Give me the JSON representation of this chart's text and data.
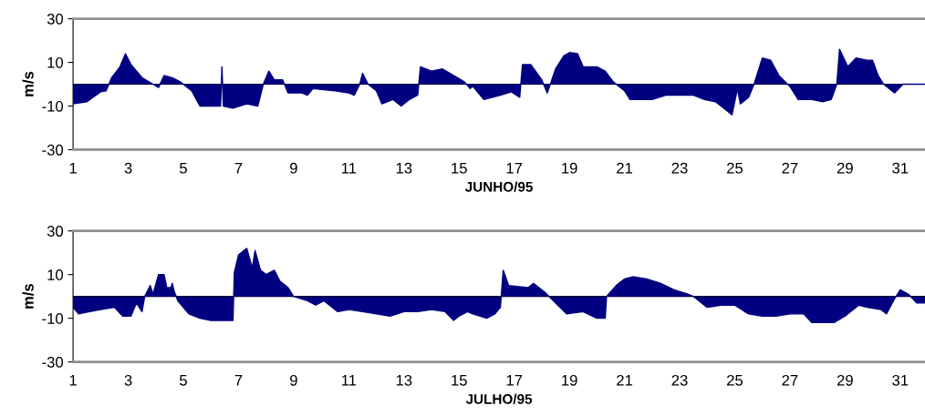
{
  "chart_data": [
    {
      "type": "area",
      "xlabel": "JUNHO/95",
      "ylabel": "m/s",
      "xlim": [
        1,
        31.9
      ],
      "ylim": [
        -30,
        30
      ],
      "xticks": [
        1,
        3,
        5,
        7,
        9,
        11,
        13,
        15,
        17,
        19,
        21,
        23,
        25,
        27,
        29,
        31
      ],
      "yticks": [
        -30,
        -10,
        10,
        30
      ],
      "series": [
        {
          "color": "#000080",
          "x": [
            1,
            1.5,
            2,
            2.2,
            2.3,
            2.4,
            2.7,
            2.9,
            3.1,
            3.5,
            3.9,
            4.1,
            4.3,
            4.6,
            4.9,
            5.3,
            5.6,
            6.0,
            6.35,
            6.4,
            6.45,
            6.8,
            7.3,
            7.7,
            7.9,
            8.1,
            8.3,
            8.6,
            8.8,
            9.3,
            9.5,
            9.7,
            10.5,
            11.0,
            11.2,
            11.4,
            11.5,
            11.7,
            12.0,
            12.2,
            12.6,
            12.9,
            13.2,
            13.5,
            13.6,
            14.0,
            14.4,
            14.8,
            15.2,
            15.4,
            15.5,
            15.9,
            16.5,
            16.9,
            17.2,
            17.3,
            17.6,
            18.0,
            18.2,
            18.5,
            18.8,
            19.0,
            19.3,
            19.5,
            20.0,
            20.3,
            20.6,
            21.0,
            21.2,
            21.6,
            22.0,
            22.5,
            23.0,
            23.5,
            23.9,
            24.3,
            24.7,
            24.9,
            25.1,
            25.2,
            25.5,
            25.7,
            26.0,
            26.3,
            26.6,
            27.0,
            27.3,
            27.8,
            28.2,
            28.5,
            28.7,
            28.8,
            29.1,
            29.4,
            29.8,
            30.0,
            30.2,
            30.4,
            30.8,
            31.1,
            31.9
          ],
          "values": [
            -9,
            -8,
            -3.5,
            -3,
            0,
            3,
            8,
            14,
            9,
            3,
            0,
            -1.5,
            4,
            3,
            1,
            -3,
            -10,
            -10,
            -10,
            8,
            -10,
            -11,
            -9,
            -10,
            0,
            6,
            2,
            2,
            -4,
            -4,
            -5,
            -2,
            -3,
            -4,
            -5,
            0,
            5,
            0,
            -3,
            -9,
            -7,
            -10,
            -7,
            -5,
            8,
            6,
            7,
            4,
            1,
            -2,
            -1,
            -7,
            -5,
            -3.5,
            -6,
            9,
            9,
            2,
            -4,
            7,
            13,
            14.5,
            14,
            8,
            8,
            6,
            1,
            -3,
            -7,
            -7,
            -7,
            -5,
            -5,
            -5,
            -7,
            -8,
            -12,
            -14,
            -2,
            -9,
            -6,
            0,
            12,
            11,
            4,
            -1,
            -7,
            -7,
            -8,
            -7,
            0,
            16,
            8,
            12,
            11,
            11,
            4,
            0,
            -4,
            0,
            0
          ]
        }
      ]
    },
    {
      "type": "area",
      "xlabel": "JULHO/95",
      "ylabel": "m/s",
      "xlim": [
        1,
        31.9
      ],
      "ylim": [
        -30,
        30
      ],
      "xticks": [
        1,
        3,
        5,
        7,
        9,
        11,
        13,
        15,
        17,
        19,
        21,
        23,
        25,
        27,
        29,
        31
      ],
      "yticks": [
        -30,
        -10,
        10,
        30
      ],
      "series": [
        {
          "color": "#000080",
          "x": [
            1.0,
            1.2,
            1.6,
            2.0,
            2.5,
            2.8,
            3.1,
            3.3,
            3.5,
            3.6,
            3.8,
            3.9,
            4.1,
            4.3,
            4.4,
            4.55,
            4.6,
            4.65,
            4.8,
            5.2,
            5.6,
            6.0,
            6.5,
            6.8,
            6.85,
            7.0,
            7.3,
            7.5,
            7.6,
            7.8,
            8.0,
            8.3,
            8.5,
            8.8,
            9.0,
            9.5,
            9.8,
            10.1,
            10.3,
            10.6,
            11.0,
            11.5,
            12.0,
            12.5,
            13.0,
            13.5,
            14.0,
            14.5,
            14.8,
            15.0,
            15.3,
            15.5,
            16.0,
            16.3,
            16.5,
            16.6,
            16.8,
            17.5,
            17.7,
            18.1,
            18.5,
            18.9,
            19.5,
            20.0,
            20.3,
            20.35,
            20.7,
            21.0,
            21.3,
            21.8,
            22.3,
            22.8,
            23.3,
            23.5,
            24.0,
            24.5,
            25.0,
            25.5,
            26.0,
            26.5,
            27.0,
            27.5,
            27.8,
            28.2,
            28.6,
            29.0,
            29.5,
            29.8,
            30.3,
            30.5,
            30.8,
            31.0,
            31.3,
            31.6,
            31.9
          ],
          "values": [
            -5,
            -8,
            -7,
            -6,
            -5,
            -9,
            -9,
            -3,
            -7,
            0,
            5,
            1,
            10,
            10,
            4,
            4,
            6,
            3,
            -2,
            -8,
            -10,
            -11,
            -11,
            -11,
            11,
            19,
            22,
            13,
            21,
            12,
            10,
            12,
            7,
            4,
            0,
            -2,
            -4,
            -2,
            -4,
            -7,
            -6,
            -7,
            -8,
            -9,
            -7,
            -7,
            -6,
            -7,
            -11,
            -9,
            -7,
            -8,
            -10,
            -8,
            -5,
            12,
            5,
            4,
            6,
            2,
            -3,
            -8,
            -7,
            -10,
            -10,
            0,
            5,
            8,
            9,
            8,
            6,
            3,
            1,
            0,
            -5,
            -4,
            -4,
            -8,
            -9,
            -9,
            -8,
            -8,
            -12,
            -12,
            -12,
            -9,
            -4,
            -5,
            -6,
            -8,
            -1,
            3,
            1,
            -3,
            -3
          ]
        }
      ]
    }
  ]
}
